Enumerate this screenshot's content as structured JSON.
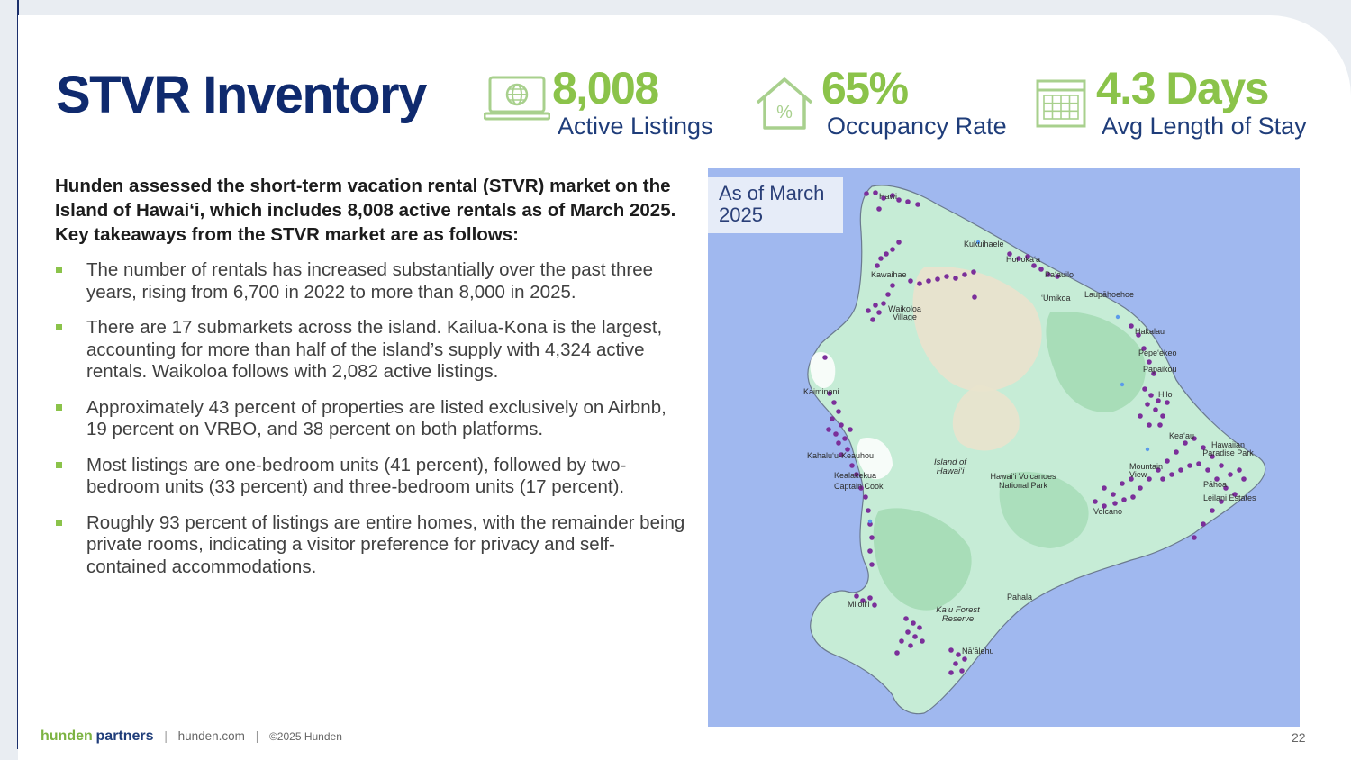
{
  "title": "STVR Inventory",
  "stats": [
    {
      "icon": "laptop-globe-icon",
      "value": "8,008",
      "label": "Active Listings"
    },
    {
      "icon": "house-percent-icon",
      "value": "65%",
      "label": "Occupancy Rate"
    },
    {
      "icon": "calendar-icon",
      "value": "4.3 Days",
      "label": "Avg Length of Stay"
    }
  ],
  "intro": "Hunden assessed the short-term vacation rental (STVR) market on the Island of Hawai‘i, which includes 8,008 active rentals as of March 2025. Key takeaways from the STVR market are as follows:",
  "bullets": [
    "The number of rentals has increased substantially over the past three years, rising from 6,700 in 2022 to more than 8,000 in 2025.",
    "There are 17 submarkets across the island. Kailua-Kona is the largest, accounting for more than half of the island’s supply with 4,324 active rentals. Waikoloa follows with 2,082 active listings.",
    "Approximately 43 percent of properties are listed exclusively on Airbnb, 19 percent on VRBO, and 38 percent on both platforms.",
    "Most listings are one-bedroom units (41 percent), followed by two-bedroom units (33 percent) and three-bedroom units (17 percent).",
    "Roughly 93 percent of listings are entire homes, with the remainder being private rooms, indicating a visitor preference for privacy and self-contained accommodations."
  ],
  "map": {
    "badge": "As of March 2025",
    "places": {
      "hawi": "Hawi",
      "kukuihaele": "Kukuihaele",
      "honokaa": "Honoka‘a",
      "paauilo": "Pa‘auilo",
      "kawaihae": "Kawaihae",
      "umikoa": "‘Umikoa",
      "laupahoehoe": "Laupāhoehoe",
      "waikoloa": "Waikoloa Village",
      "hakalau": "Hakalau",
      "pepeekeo": "Pepe‘ekeo",
      "papaikou": "Papaikou",
      "kaiminani": "Kaiminani",
      "hilo": "Hilo",
      "keaau": "Kea‘au",
      "kahaluu": "Kahalu‘u-Keauhou",
      "island": "Island of Hawai‘i",
      "mountain_view": "Mountain View",
      "hawaiian_paradise": "Hawaiian Paradise Park",
      "kealakekua": "Kealakekua",
      "captain_cook": "Captain Cook",
      "volcanoes": "Hawai‘i Volcanoes National Park",
      "pahoa": "Pāhoa",
      "leilani": "Leilani Estates",
      "volcano": "Volcano",
      "milolii": "Miloli‘i",
      "pahala": "Pahala",
      "kau_forest": "Ka‘u Forest Reserve",
      "naalehu": "Nā‘ālehu"
    }
  },
  "footer": {
    "brand_a": "hunden",
    "brand_b": "partners",
    "site": "hunden.com",
    "copyright": "©2025 Hunden"
  },
  "page_number": "22",
  "colors": {
    "navy": "#0f2a6e",
    "green": "#8bc34a",
    "ocean": "#a0b8ef",
    "land": "#c6ecd6",
    "marker": "#7b2f9a"
  }
}
